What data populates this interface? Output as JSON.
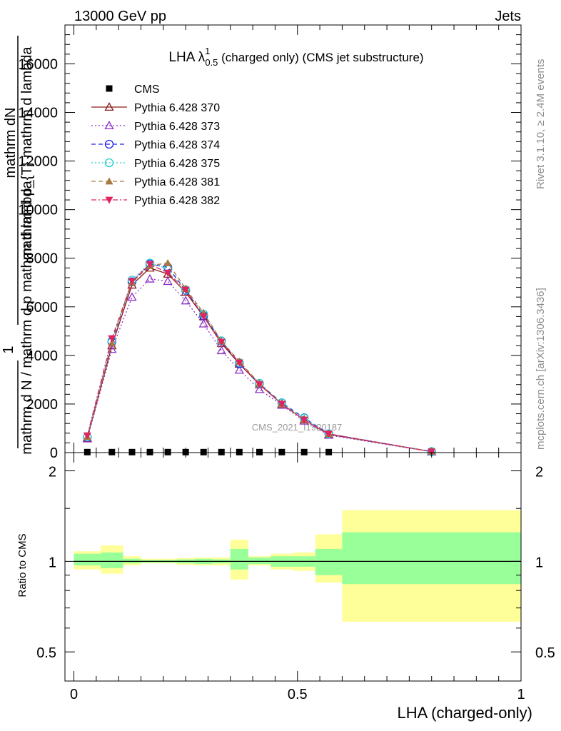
{
  "header": {
    "energy": "13000 GeV pp",
    "category": "Jets"
  },
  "side_labels": {
    "rivet": "Rivet 3.1.10, ≥ 2.4M events",
    "mcplots": "mcplots.cern.ch [arXiv:1306.3436]"
  },
  "watermark": "CMS_2021_I1920187",
  "chart_data": [
    {
      "type": "line",
      "title": {
        "main": "LHA λ",
        "sup": "1",
        "sub": "0.5",
        "rest": " (charged only) (CMS jet substructure)"
      },
      "ylabel": {
        "num": "1",
        "frac_top": "mathrm dN",
        "frac_bottom": "mathrm d p_{T} mathrm d lambda",
        "overlay_a": "mathrm d N / mathrm d p mathrm d lambda",
        "overlay_b": "mathrm d N / mathrm d p"
      },
      "xlabel": "LHA (charged-only)",
      "xlim": [
        -0.02,
        1.0
      ],
      "ylim": [
        0,
        17600
      ],
      "yticks": [
        0,
        2000,
        4000,
        6000,
        8000,
        10000,
        12000,
        14000,
        16000
      ],
      "ytick_labels": [
        "0",
        "2000",
        "4000",
        "6000",
        "8000",
        "10000",
        "12000",
        "14000",
        "16000"
      ],
      "x": [
        0.03,
        0.085,
        0.13,
        0.17,
        0.21,
        0.25,
        0.29,
        0.33,
        0.37,
        0.415,
        0.465,
        0.515,
        0.57,
        0.8
      ],
      "series": [
        {
          "name": "CMS",
          "color": "#000000",
          "marker": "square",
          "dash": "none",
          "values": [
            20,
            20,
            20,
            20,
            20,
            20,
            20,
            20,
            20,
            20,
            20,
            20,
            20,
            null
          ]
        },
        {
          "name": "Pythia 6.428 370",
          "color": "#8b1a1a",
          "marker": "triangle-up-open",
          "dash": "solid",
          "values": [
            600,
            4400,
            6900,
            7600,
            7350,
            6600,
            5600,
            4500,
            3650,
            2800,
            2000,
            1350,
            750,
            40
          ]
        },
        {
          "name": "Pythia 6.428 373",
          "color": "#8e2ec6",
          "marker": "triangle-up-open",
          "dash": "dotted",
          "values": [
            570,
            4250,
            6400,
            7150,
            7050,
            6250,
            5300,
            4200,
            3400,
            2600,
            1950,
            1300,
            720,
            35
          ]
        },
        {
          "name": "Pythia 6.428 374",
          "color": "#2222ee",
          "marker": "circle-open",
          "dash": "dashed",
          "values": [
            640,
            4560,
            7030,
            7760,
            7630,
            6680,
            5630,
            4590,
            3660,
            2840,
            2050,
            1430,
            770,
            40
          ]
        },
        {
          "name": "Pythia 6.428 375",
          "color": "#22cccc",
          "marker": "circle-open",
          "dash": "dotted",
          "values": [
            650,
            4600,
            7100,
            7800,
            7560,
            6700,
            5700,
            4600,
            3700,
            2850,
            2050,
            1420,
            770,
            40
          ]
        },
        {
          "name": "Pythia 6.428 381",
          "color": "#a8773f",
          "marker": "triangle-up-filled",
          "dash": "dashed",
          "values": [
            650,
            4500,
            7000,
            7700,
            7800,
            6750,
            5750,
            4600,
            3750,
            2850,
            2000,
            1350,
            770,
            40
          ]
        },
        {
          "name": "Pythia 6.428 382",
          "color": "#e0245e",
          "marker": "triangle-down-filled",
          "dash": "dashdot",
          "values": [
            700,
            4700,
            7050,
            7750,
            7400,
            6700,
            5600,
            4550,
            3700,
            2800,
            2000,
            1350,
            770,
            40
          ]
        }
      ]
    },
    {
      "type": "area",
      "ylabel": "Ratio to CMS",
      "ylim": [
        0.4,
        2.3
      ],
      "yticks": [
        0.5,
        1,
        2
      ],
      "ytick_labels": [
        "0.5",
        "1",
        "2"
      ],
      "xticks": [
        0,
        0.5,
        1
      ],
      "xtick_labels": [
        "0",
        "0.5",
        "1"
      ],
      "reference_line": 1,
      "bands": {
        "edges": [
          0.0,
          0.06,
          0.11,
          0.15,
          0.19,
          0.23,
          0.27,
          0.31,
          0.35,
          0.39,
          0.44,
          0.49,
          0.54,
          0.6,
          1.0
        ],
        "inner_color": "#99ff99",
        "outer_color": "#ffff99",
        "inner": [
          [
            0.97,
            1.06
          ],
          [
            0.95,
            1.07
          ],
          [
            0.985,
            1.02
          ],
          [
            0.99,
            1.01
          ],
          [
            0.99,
            1.01
          ],
          [
            0.985,
            1.015
          ],
          [
            0.98,
            1.02
          ],
          [
            0.985,
            1.015
          ],
          [
            0.94,
            1.1
          ],
          [
            0.98,
            1.03
          ],
          [
            0.96,
            1.04
          ],
          [
            0.96,
            1.04
          ],
          [
            0.9,
            1.1
          ],
          [
            0.84,
            1.25
          ]
        ],
        "outer": [
          [
            0.94,
            1.08
          ],
          [
            0.91,
            1.13
          ],
          [
            0.97,
            1.04
          ],
          [
            0.985,
            1.02
          ],
          [
            0.985,
            1.02
          ],
          [
            0.975,
            1.025
          ],
          [
            0.97,
            1.03
          ],
          [
            0.97,
            1.03
          ],
          [
            0.87,
            1.18
          ],
          [
            0.97,
            1.04
          ],
          [
            0.94,
            1.06
          ],
          [
            0.93,
            1.07
          ],
          [
            0.85,
            1.23
          ],
          [
            0.63,
            1.48
          ]
        ]
      }
    }
  ]
}
